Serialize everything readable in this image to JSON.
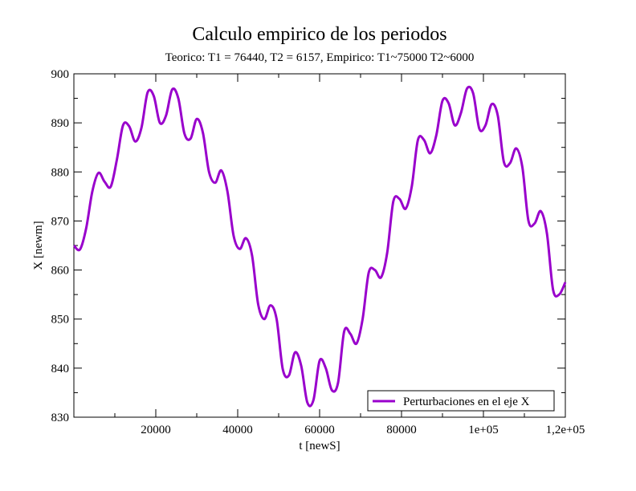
{
  "chart_data": {
    "type": "line",
    "title": "Calculo empirico de los periodos",
    "subtitle": "Teorico: T1 = 76440, T2 = 6157, Empirico: T1~75000 T2~6000",
    "xlabel": "t [newS]",
    "ylabel": "X [newm]",
    "xlim": [
      0,
      120000
    ],
    "ylim": [
      830,
      900
    ],
    "x_ticks": [
      {
        "value": 20000,
        "label": "20000"
      },
      {
        "value": 40000,
        "label": "40000"
      },
      {
        "value": 60000,
        "label": "60000"
      },
      {
        "value": 80000,
        "label": "80000"
      },
      {
        "value": 100000,
        "label": "1e+05"
      },
      {
        "value": 120000,
        "label": "1,2e+05"
      }
    ],
    "y_ticks": [
      {
        "value": 830,
        "label": "830"
      },
      {
        "value": 840,
        "label": "840"
      },
      {
        "value": 850,
        "label": "850"
      },
      {
        "value": 860,
        "label": "860"
      },
      {
        "value": 870,
        "label": "870"
      },
      {
        "value": 880,
        "label": "880"
      },
      {
        "value": 890,
        "label": "890"
      },
      {
        "value": 900,
        "label": "900"
      }
    ],
    "grid": false,
    "legend_position": "bottom-right",
    "series": [
      {
        "name": "Perturbaciones en el eje X",
        "color": "#9900cc",
        "x": [
          0,
          1500,
          3000,
          4500,
          6000,
          7500,
          9000,
          10500,
          12000,
          13500,
          15000,
          16500,
          18000,
          19500,
          21000,
          22500,
          24000,
          25500,
          27000,
          28500,
          30000,
          31500,
          33000,
          34500,
          36000,
          37500,
          39000,
          40500,
          42000,
          43500,
          45000,
          46500,
          48000,
          49500,
          51000,
          52500,
          54000,
          55500,
          57000,
          58500,
          60000,
          61500,
          63000,
          64500,
          66000,
          67500,
          69000,
          70500,
          72000,
          73500,
          75000,
          76500,
          78000,
          79500,
          81000,
          82500,
          84000,
          85500,
          87000,
          88500,
          90000,
          91500,
          93000,
          94500,
          96000,
          97500,
          99000,
          100500,
          102000,
          103500,
          105000,
          106500,
          108000,
          109500,
          111000,
          112500,
          114000,
          115500,
          117000,
          118500,
          120000
        ],
        "y": [
          865.0,
          864.2,
          868.5,
          876.0,
          879.8,
          878.0,
          877.0,
          882.5,
          889.5,
          889.3,
          886.2,
          889.0,
          896.2,
          895.5,
          890.0,
          891.5,
          896.8,
          895.0,
          887.8,
          886.8,
          890.8,
          888.0,
          880.0,
          877.8,
          880.3,
          876.0,
          867.0,
          864.3,
          866.5,
          863.0,
          853.0,
          850.0,
          852.8,
          850.0,
          839.8,
          838.5,
          843.2,
          840.5,
          833.0,
          833.5,
          841.5,
          840.0,
          835.5,
          837.0,
          847.5,
          847.0,
          845.0,
          850.0,
          859.5,
          860.0,
          858.5,
          863.5,
          874.0,
          874.5,
          872.5,
          877.0,
          886.5,
          886.5,
          883.8,
          887.5,
          894.5,
          894.0,
          889.5,
          892.0,
          897.0,
          896.0,
          888.8,
          889.5,
          893.8,
          891.5,
          882.0,
          881.8,
          884.8,
          881.0,
          870.0,
          869.5,
          872.0,
          867.5,
          856.0,
          855.0,
          857.5
        ]
      }
    ]
  }
}
